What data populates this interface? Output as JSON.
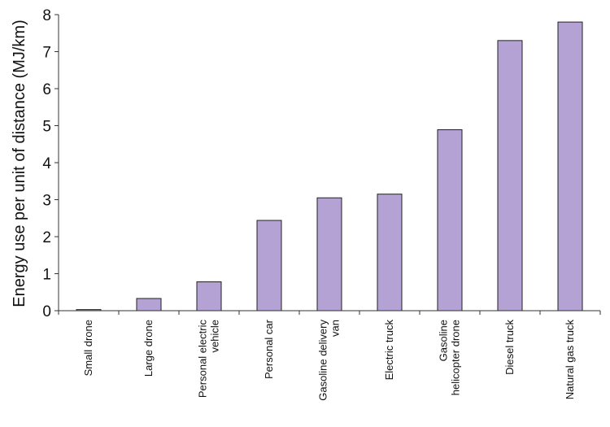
{
  "chart_data": {
    "type": "bar",
    "title": "",
    "xlabel": "",
    "ylabel": "Energy use per unit of distance (MJ/km)",
    "ylim": [
      0,
      8
    ],
    "yticks": [
      0,
      1,
      2,
      3,
      4,
      5,
      6,
      7,
      8
    ],
    "grid": false,
    "legend": "none",
    "bar_color": "#b3a2d3",
    "categories": [
      [
        "Small drone"
      ],
      [
        "Large drone"
      ],
      [
        "Personal electric",
        "vehicle"
      ],
      [
        "Personal car"
      ],
      [
        "Gasoline delivery",
        "van"
      ],
      [
        "Electric truck"
      ],
      [
        "Gasoline",
        "helicopter drone"
      ],
      [
        "Diesel truck"
      ],
      [
        "Natural gas truck"
      ]
    ],
    "values": [
      0.03,
      0.33,
      0.78,
      2.44,
      3.05,
      3.15,
      4.89,
      7.3,
      7.8
    ]
  }
}
